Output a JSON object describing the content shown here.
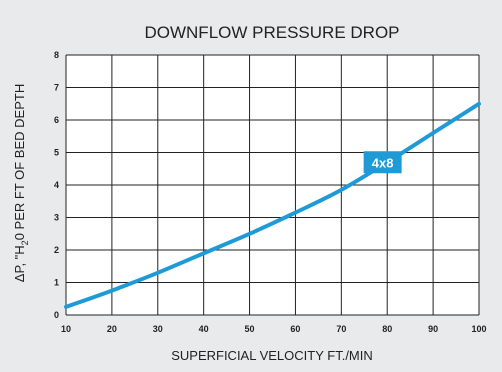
{
  "chart_data": {
    "type": "line",
    "title": "DOWNFLOW PRESSURE DROP",
    "xlabel": "SUPERFICIAL VELOCITY FT./MIN",
    "ylabel_parts": [
      "ΔP, \"H",
      "2",
      "0 PER FT OF BED DEPTH"
    ],
    "xlim": [
      10,
      100
    ],
    "ylim": [
      0,
      8
    ],
    "x_ticks": [
      10,
      20,
      30,
      40,
      50,
      60,
      70,
      80,
      90,
      100
    ],
    "y_ticks": [
      0,
      1,
      2,
      3,
      4,
      5,
      6,
      7,
      8
    ],
    "grid": true,
    "series": [
      {
        "name": "4x8",
        "color": "#1e9ad6",
        "x": [
          10,
          20,
          30,
          40,
          50,
          60,
          70,
          80,
          90,
          100
        ],
        "y": [
          0.25,
          0.75,
          1.3,
          1.9,
          2.5,
          3.15,
          3.85,
          4.7,
          5.6,
          6.5
        ]
      }
    ],
    "annotation": {
      "text": "4x8",
      "x": 79,
      "y": 4.7
    }
  }
}
